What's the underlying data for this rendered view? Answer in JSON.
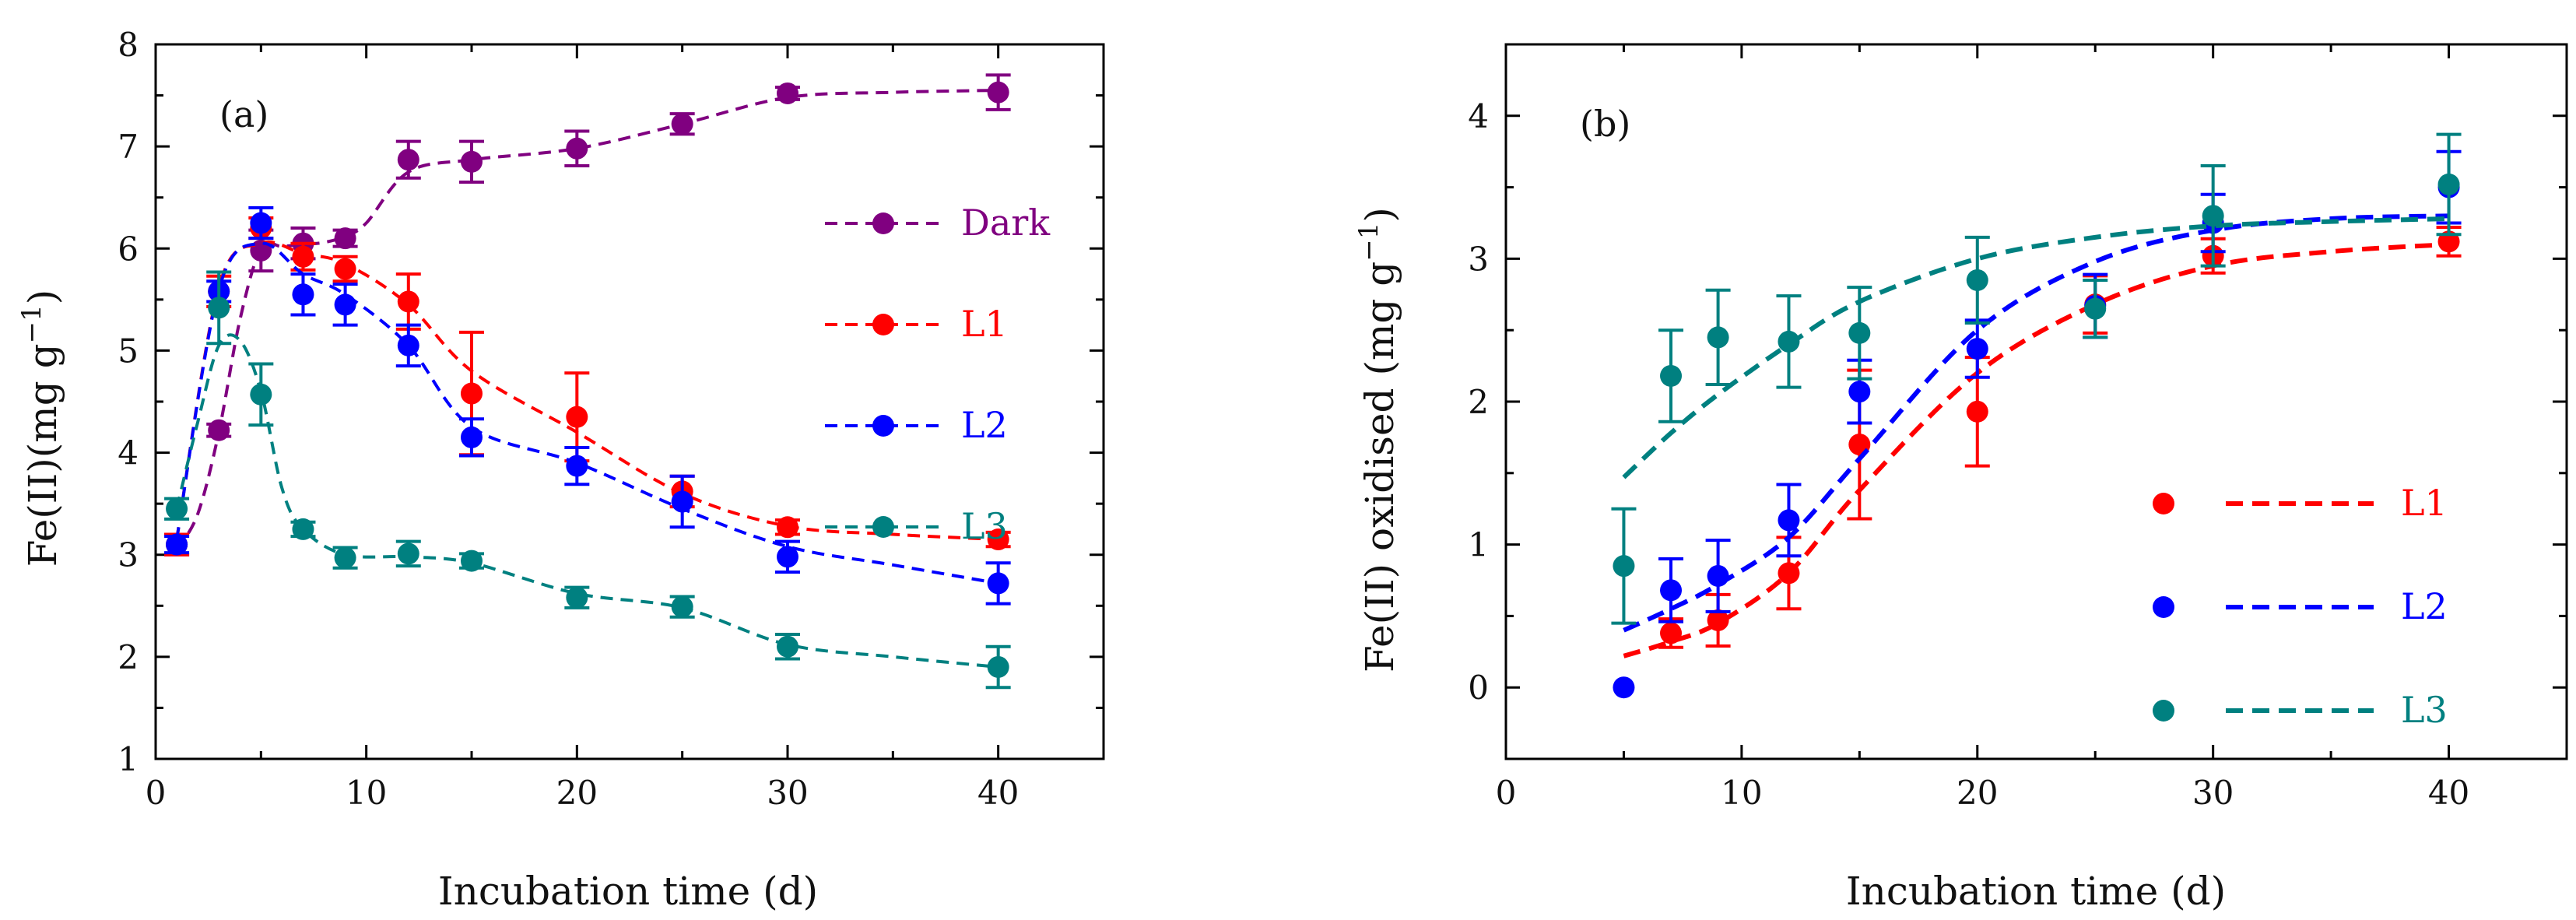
{
  "chart_data": [
    {
      "type": "scatter",
      "panel_label": "(a)",
      "xlabel": "Incubation time (d)",
      "ylabel": "Fe(II)(mg g",
      "ylabel_superscript": "−1",
      "ylabel_close": ")",
      "xlim": [
        0,
        45
      ],
      "ylim": [
        1,
        8
      ],
      "xticks": [
        0,
        10,
        20,
        30,
        40
      ],
      "yticks": [
        1,
        2,
        3,
        4,
        5,
        6,
        7,
        8
      ],
      "legend_position": "right",
      "series": [
        {
          "name": "Dark",
          "color": "#800080",
          "x": [
            1,
            3,
            5,
            7,
            9,
            12,
            15,
            20,
            25,
            30,
            40
          ],
          "y": [
            3.1,
            4.22,
            5.98,
            6.05,
            6.1,
            6.87,
            6.85,
            6.98,
            7.22,
            7.52,
            7.53
          ],
          "err": [
            0.1,
            0.06,
            0.2,
            0.15,
            0.08,
            0.18,
            0.2,
            0.17,
            0.1,
            0.06,
            0.17
          ],
          "fit_x": [
            1,
            2,
            3,
            4,
            5,
            6,
            7,
            8,
            9,
            10,
            12,
            15,
            20,
            25,
            30,
            35,
            40
          ],
          "fit_y": [
            3.05,
            3.4,
            4.2,
            5.3,
            6.0,
            6.02,
            6.04,
            6.06,
            6.12,
            6.25,
            6.75,
            6.87,
            6.98,
            7.22,
            7.48,
            7.53,
            7.55
          ]
        },
        {
          "name": "L1",
          "color": "#ff0000",
          "x": [
            1,
            3,
            5,
            7,
            9,
            12,
            15,
            20,
            25,
            30,
            40
          ],
          "y": [
            3.1,
            5.58,
            6.2,
            5.92,
            5.8,
            5.48,
            4.58,
            4.35,
            3.62,
            3.27,
            3.15
          ],
          "err": [
            0.1,
            0.15,
            0.1,
            0.13,
            0.12,
            0.27,
            0.6,
            0.43,
            0.15,
            0.07,
            0.07
          ],
          "fit_x": [
            1,
            3,
            5,
            7,
            9,
            12,
            15,
            20,
            25,
            30,
            35,
            40
          ],
          "fit_y": [
            3.15,
            5.62,
            6.05,
            5.95,
            5.85,
            5.45,
            4.8,
            4.2,
            3.6,
            3.28,
            3.2,
            3.15
          ]
        },
        {
          "name": "L2",
          "color": "#0000ff",
          "x": [
            1,
            3,
            5,
            7,
            9,
            12,
            15,
            20,
            25,
            30,
            40
          ],
          "y": [
            3.1,
            5.58,
            6.25,
            5.55,
            5.45,
            5.05,
            4.15,
            3.87,
            3.52,
            2.98,
            2.72
          ],
          "err": [
            0.08,
            0.1,
            0.15,
            0.2,
            0.2,
            0.2,
            0.18,
            0.18,
            0.25,
            0.15,
            0.2
          ],
          "fit_x": [
            1,
            3,
            5,
            7,
            9,
            12,
            15,
            20,
            25,
            30,
            35,
            40
          ],
          "fit_y": [
            3.15,
            5.6,
            6.05,
            5.75,
            5.55,
            5.05,
            4.25,
            3.9,
            3.45,
            3.08,
            2.9,
            2.72
          ]
        },
        {
          "name": "L3",
          "color": "#008080",
          "x": [
            1,
            3,
            5,
            7,
            9,
            12,
            15,
            20,
            25,
            30,
            40
          ],
          "y": [
            3.45,
            5.42,
            4.57,
            3.25,
            2.97,
            3.01,
            2.94,
            2.58,
            2.49,
            2.1,
            1.9
          ],
          "err": [
            0.1,
            0.35,
            0.3,
            0.07,
            0.1,
            0.12,
            0.07,
            0.1,
            0.1,
            0.12,
            0.2
          ],
          "fit_x": [
            1,
            2,
            3,
            4,
            5,
            6,
            7,
            9,
            12,
            15,
            20,
            25,
            30,
            35,
            40
          ],
          "fit_y": [
            3.45,
            4.3,
            5.05,
            5.1,
            4.6,
            3.65,
            3.25,
            3.0,
            2.98,
            2.92,
            2.62,
            2.48,
            2.12,
            2.0,
            1.9
          ]
        }
      ]
    },
    {
      "type": "scatter",
      "panel_label": "(b)",
      "xlabel": "Incubation time (d)",
      "ylabel": "Fe(II) oxidised (mg g",
      "ylabel_superscript": "−1",
      "ylabel_close": ")",
      "xlim": [
        0,
        45
      ],
      "ylim": [
        -0.5,
        4.5
      ],
      "xticks": [
        0,
        10,
        20,
        30,
        40
      ],
      "yticks": [
        0,
        1,
        2,
        3,
        4
      ],
      "legend_position": "bottom-right",
      "series": [
        {
          "name": "L1",
          "color": "#ff0000",
          "x": [
            7,
            9,
            12,
            15,
            20,
            25,
            30,
            40
          ],
          "y": [
            0.38,
            0.47,
            0.8,
            1.7,
            1.93,
            2.68,
            3.02,
            3.12
          ],
          "err": [
            0.1,
            0.18,
            0.25,
            0.52,
            0.38,
            0.2,
            0.12,
            0.1
          ],
          "fit_x": [
            5,
            7,
            9,
            12,
            15,
            20,
            25,
            30,
            35,
            40
          ],
          "fit_y": [
            0.22,
            0.32,
            0.45,
            0.8,
            1.38,
            2.2,
            2.68,
            2.95,
            3.05,
            3.1
          ]
        },
        {
          "name": "L2",
          "color": "#0000ff",
          "x": [
            5,
            7,
            9,
            12,
            15,
            20,
            25,
            30,
            40
          ],
          "y": [
            0.0,
            0.68,
            0.78,
            1.17,
            2.07,
            2.37,
            2.67,
            3.25,
            3.5
          ],
          "err": [
            0.0,
            0.22,
            0.25,
            0.25,
            0.22,
            0.2,
            0.22,
            0.2,
            0.25
          ],
          "fit_x": [
            5,
            7,
            9,
            12,
            15,
            20,
            25,
            30,
            35,
            40
          ],
          "fit_y": [
            0.4,
            0.55,
            0.72,
            1.05,
            1.6,
            2.5,
            2.98,
            3.2,
            3.28,
            3.3
          ]
        },
        {
          "name": "L3",
          "color": "#008080",
          "x": [
            5,
            7,
            9,
            12,
            15,
            20,
            25,
            30,
            40
          ],
          "y": [
            0.85,
            2.18,
            2.45,
            2.42,
            2.48,
            2.85,
            2.65,
            3.3,
            3.52
          ],
          "err": [
            0.4,
            0.32,
            0.33,
            0.32,
            0.32,
            0.3,
            0.2,
            0.35,
            0.35
          ],
          "fit_x": [
            5,
            7,
            9,
            12,
            15,
            20,
            25,
            30,
            35,
            40
          ],
          "fit_y": [
            1.47,
            1.78,
            2.05,
            2.4,
            2.7,
            3.0,
            3.15,
            3.23,
            3.26,
            3.28
          ]
        }
      ]
    }
  ]
}
